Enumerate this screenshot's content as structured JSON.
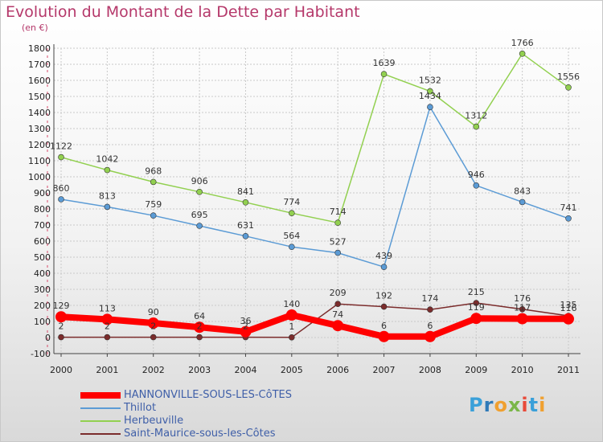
{
  "title": "Evolution du Montant de la Dette par Habitant",
  "subtitle": "(en €)",
  "logo": {
    "parts": [
      {
        "text": "P",
        "color": "#3aa0d9"
      },
      {
        "text": "r",
        "color": "#2f7ab8"
      },
      {
        "text": "o",
        "color": "#f0a030"
      },
      {
        "text": "x",
        "color": "#7ab648"
      },
      {
        "text": "i",
        "color": "#e84a3a"
      },
      {
        "text": "t",
        "color": "#3aa0d9"
      },
      {
        "text": "i",
        "color": "#f0a030"
      }
    ]
  },
  "chart_data": {
    "type": "line",
    "x": [
      "2000",
      "2001",
      "2002",
      "2003",
      "2004",
      "2005",
      "2006",
      "2007",
      "2008",
      "2009",
      "2010",
      "2011"
    ],
    "ylim": [
      -100,
      1800
    ],
    "yticks": [
      -100,
      0,
      100,
      200,
      300,
      400,
      500,
      600,
      700,
      800,
      900,
      1000,
      1100,
      1200,
      1300,
      1400,
      1500,
      1600,
      1700,
      1800
    ],
    "grid": true,
    "legend": "bottom-left",
    "series": [
      {
        "name": "HANNONVILLE-SOUS-LES-CôTES",
        "color": "#ff0000",
        "values": [
          129,
          113,
          90,
          64,
          36,
          140,
          74,
          6,
          6,
          119,
          117,
          116
        ],
        "labels": [
          "129",
          "113",
          "90",
          "64",
          "36",
          "140",
          "74",
          "6",
          "6",
          "119",
          "117",
          "116"
        ]
      },
      {
        "name": "Thillot",
        "color": "#5b9bd5",
        "values": [
          860,
          813,
          759,
          695,
          631,
          564,
          527,
          439,
          1434,
          946,
          843,
          741
        ],
        "labels": [
          "860",
          "813",
          "759",
          "695",
          "631",
          "564",
          "527",
          "439",
          "1434",
          "946",
          "843",
          "741"
        ]
      },
      {
        "name": "Herbeuville",
        "color": "#92d050",
        "values": [
          1122,
          1042,
          968,
          906,
          841,
          774,
          714,
          1639,
          1532,
          1312,
          1766,
          1556
        ],
        "labels": [
          "1122",
          "1042",
          "968",
          "906",
          "841",
          "774",
          "714",
          "1639",
          "1532",
          "1312",
          "1766",
          "1556"
        ]
      },
      {
        "name": "Saint-Maurice-sous-les-Côtes",
        "color": "#7b2c2c",
        "values": [
          2,
          2,
          2,
          2,
          2,
          1,
          209,
          192,
          174,
          215,
          176,
          135
        ],
        "labels": [
          "2",
          "2",
          "2",
          "2",
          "2",
          "1",
          "209",
          "192",
          "174",
          "215",
          "176",
          "135"
        ]
      }
    ]
  }
}
